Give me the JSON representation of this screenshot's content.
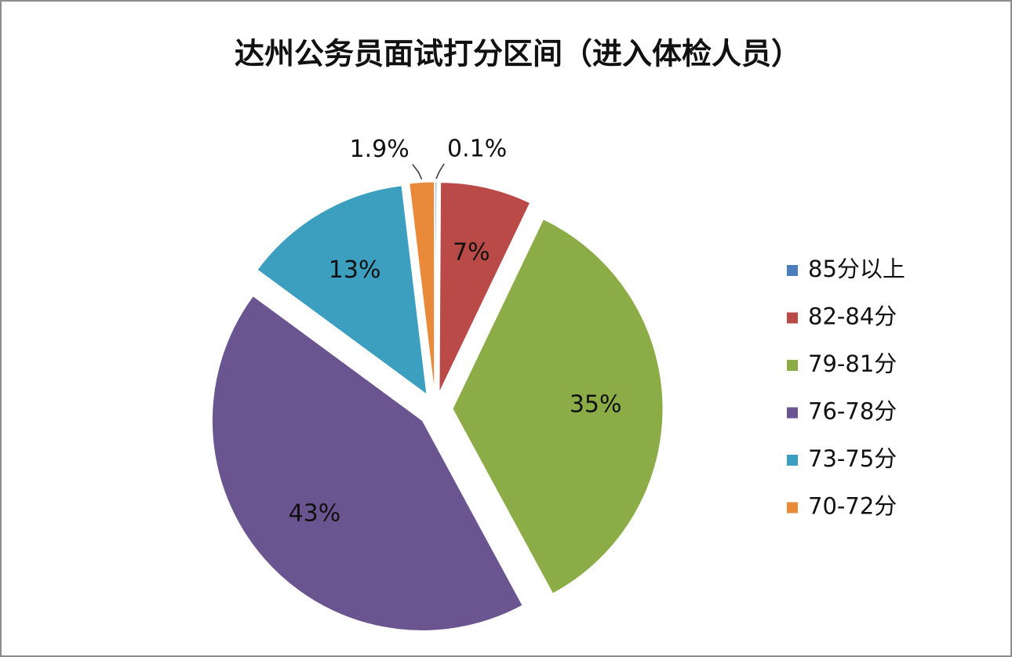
{
  "chart_data": {
    "type": "pie",
    "title": "达州公务员面试打分区间（进入体检人员）",
    "categories": [
      "85分以上",
      "82-84分",
      "79-81分",
      "76-78分",
      "73-75分",
      "70-72分"
    ],
    "values": [
      0.1,
      7,
      35,
      43,
      13,
      1.9
    ],
    "value_labels": [
      "0.1%",
      "7%",
      "35%",
      "43%",
      "13%",
      "1.9%"
    ],
    "colors": [
      "#4a7ebb",
      "#b94a47",
      "#8cac48",
      "#6b5591",
      "#3d9fc0",
      "#e98a3b"
    ],
    "legend": "right"
  }
}
